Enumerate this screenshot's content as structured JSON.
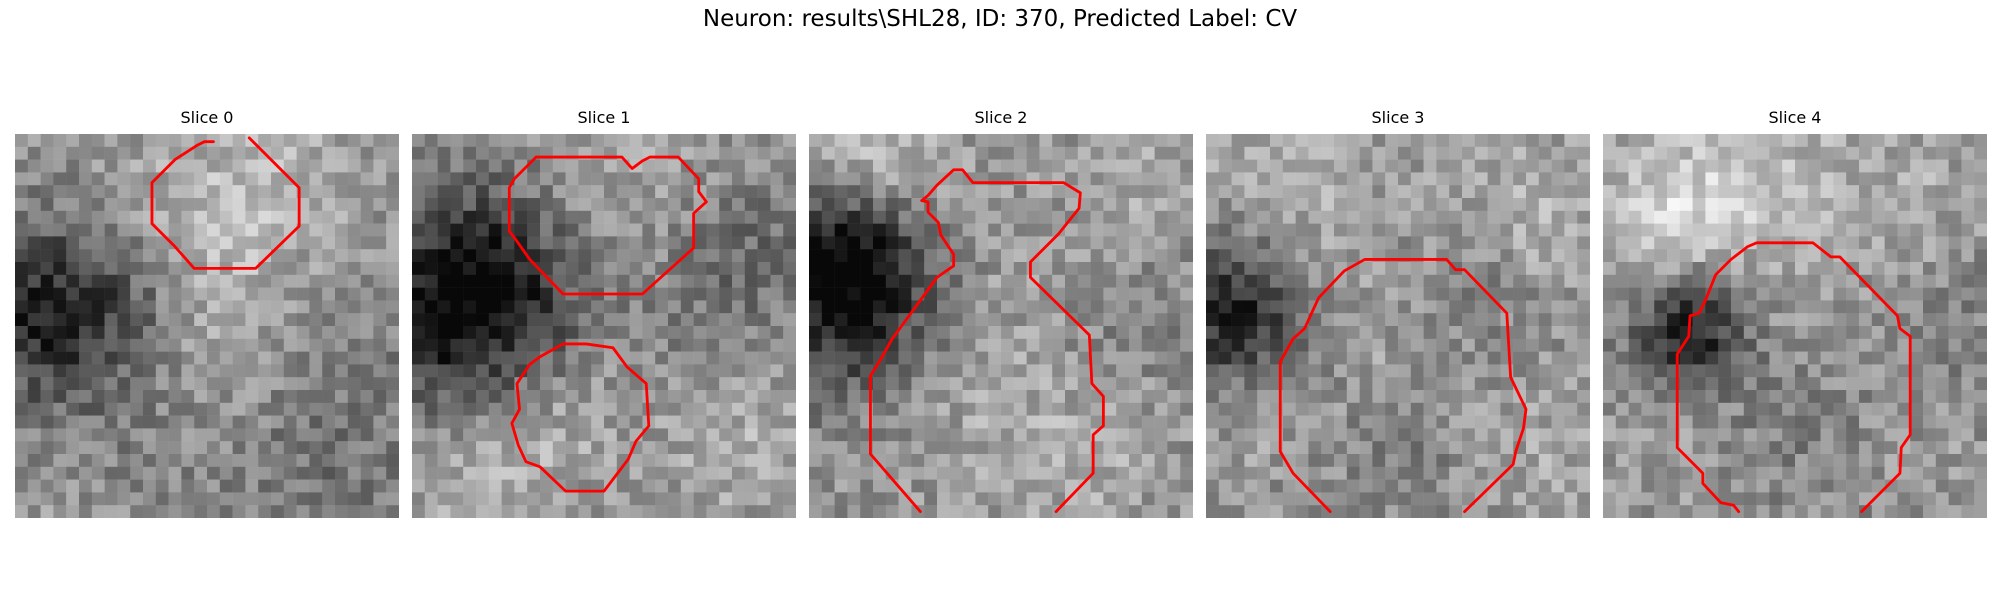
{
  "figure": {
    "title": "Neuron: results\\SHL28, ID: 370, Predicted Label: CV"
  },
  "colors": {
    "contour": "#ff0000",
    "background": "#ffffff"
  },
  "panels": [
    {
      "title": "Slice 0"
    },
    {
      "title": "Slice 1"
    },
    {
      "title": "Slice 2"
    },
    {
      "title": "Slice 3"
    },
    {
      "title": "Slice 4"
    }
  ]
}
